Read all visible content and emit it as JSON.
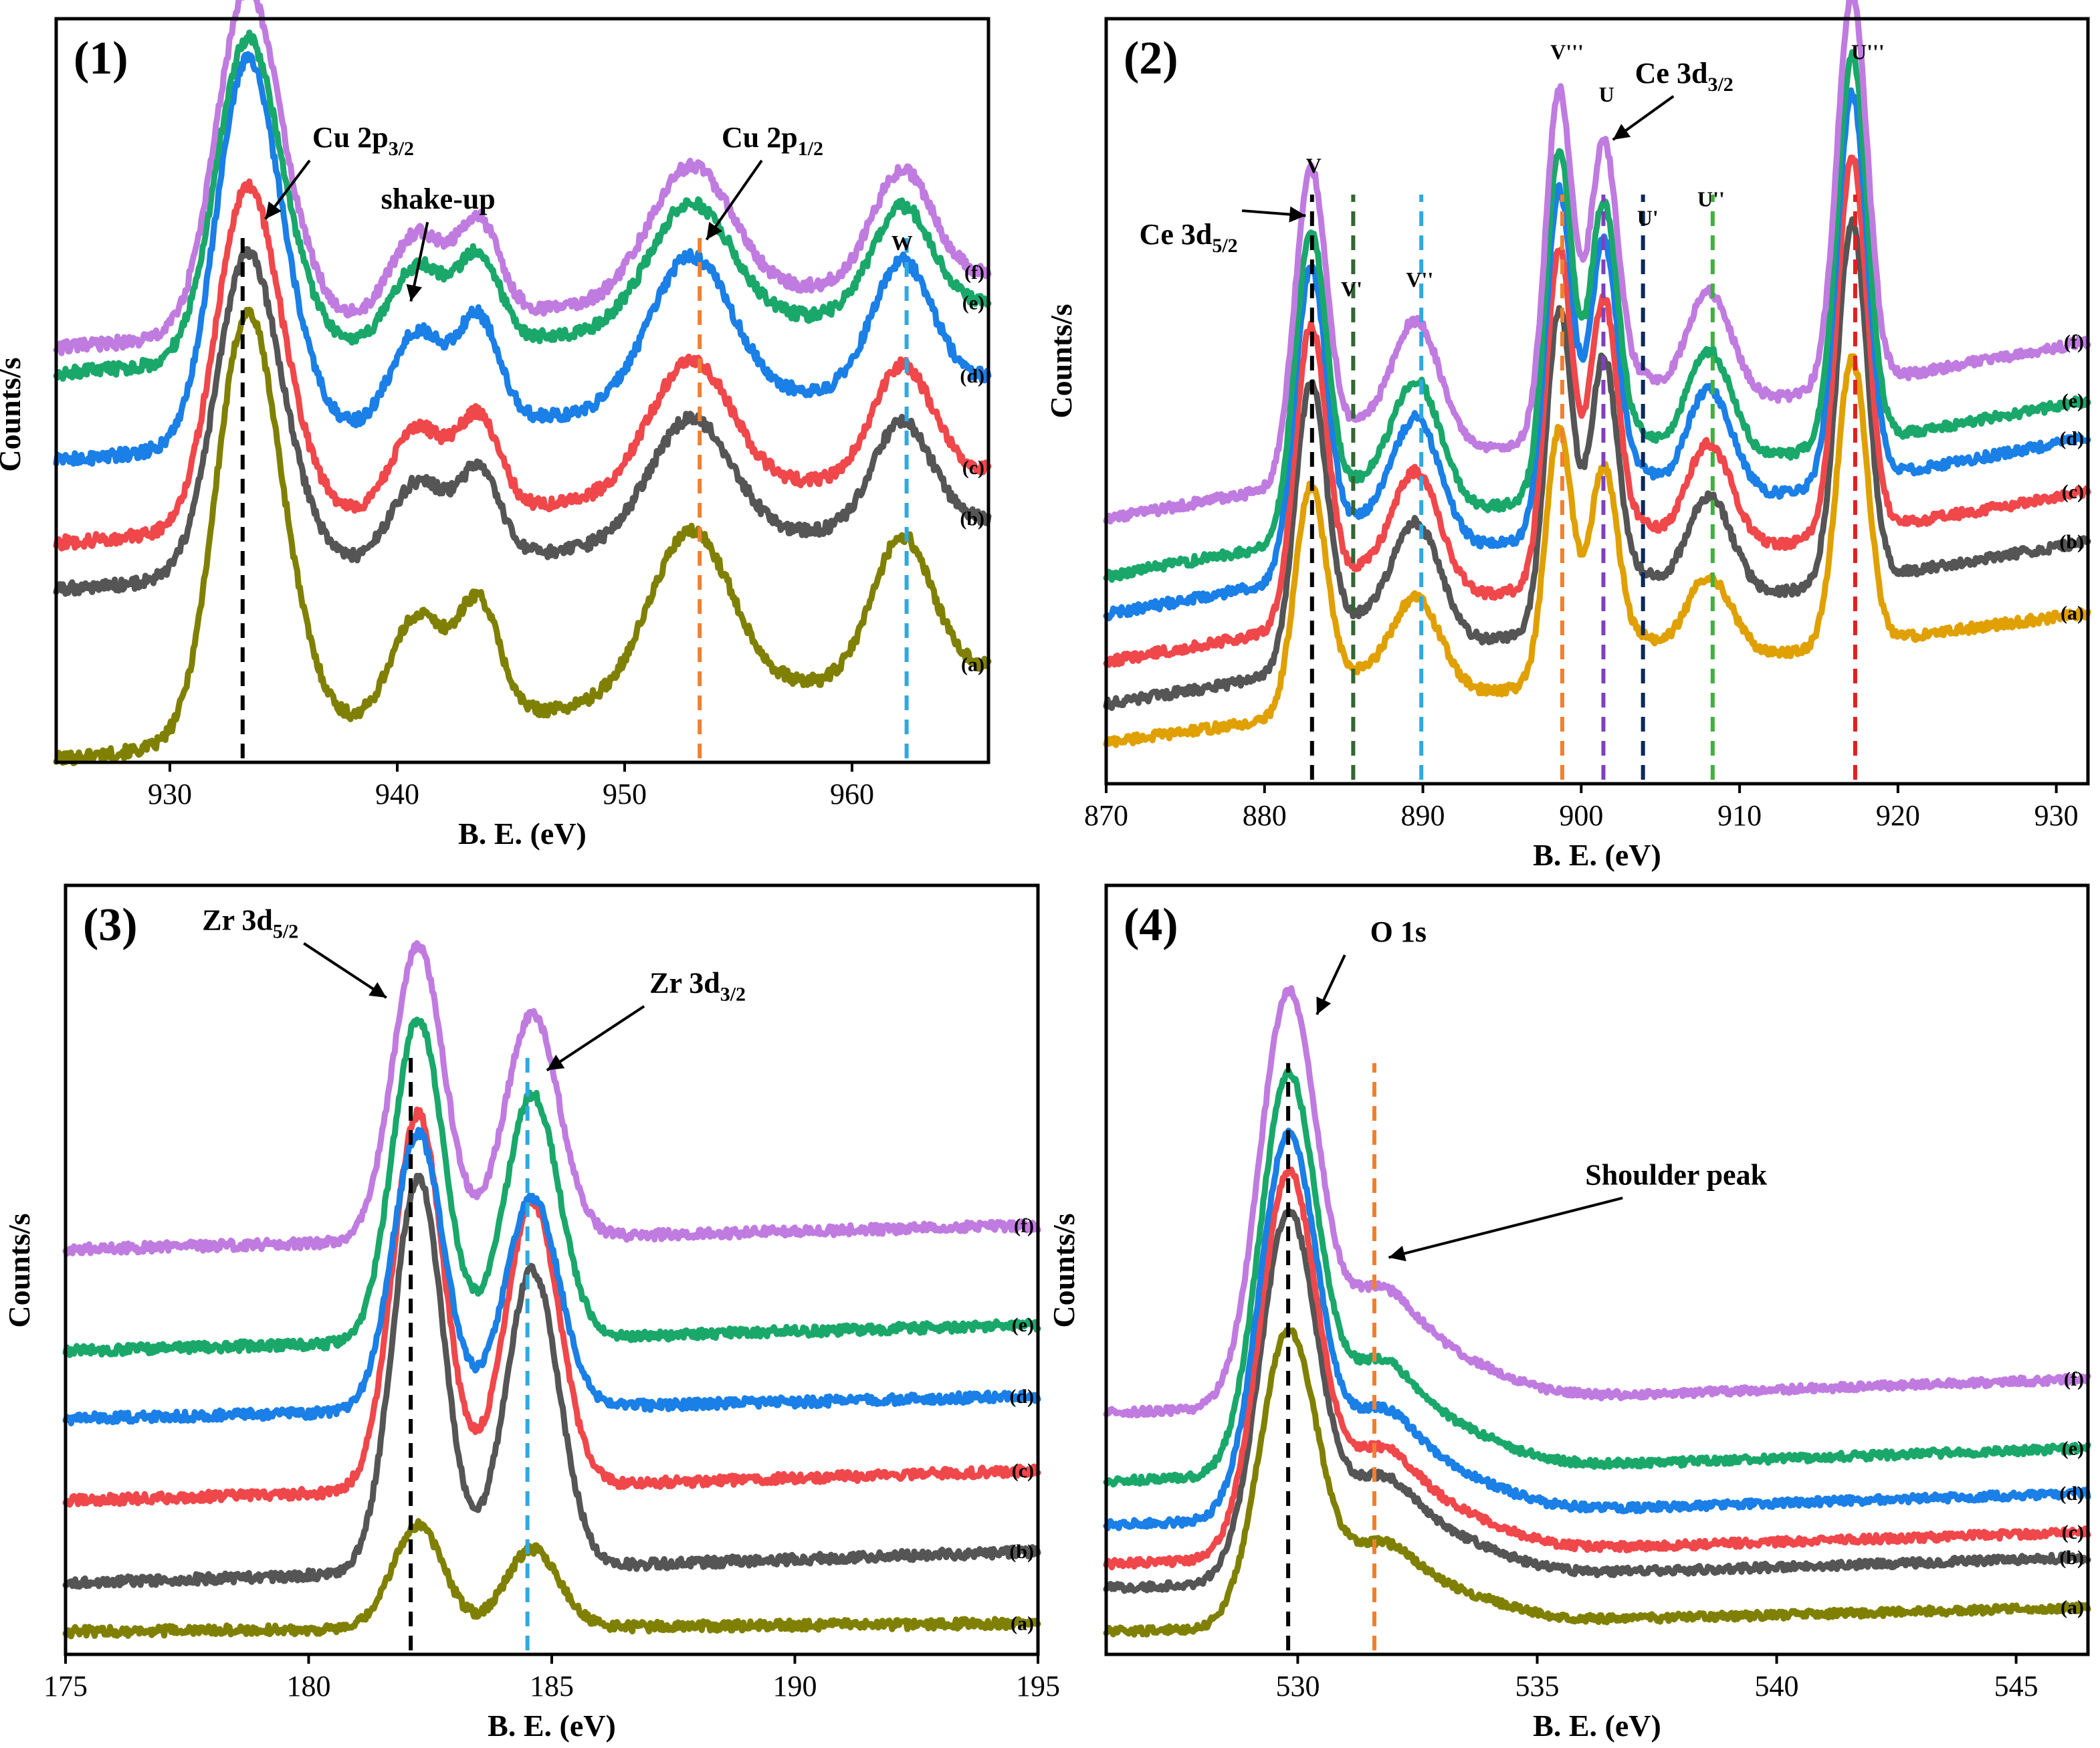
{
  "colors": {
    "a": "#808000",
    "b": "#555555",
    "c": "#f0474b",
    "d": "#1a7fe6",
    "e": "#1aa86a",
    "f": "#c07be0",
    "black": "#000000",
    "orange": "#f08030",
    "skyblue": "#30a8e0",
    "darkgreen": "#336633",
    "purple": "#8040c0",
    "navy": "#0a2a5a",
    "green": "#40b040",
    "red": "#e02020",
    "gold": "#e0a000"
  },
  "chart_data": [
    {
      "type": "line",
      "panel_label": "(1)",
      "xlabel": "B. E. (eV)",
      "ylabel": "Counts/s",
      "xlim": [
        925,
        966
      ],
      "xticks": [
        930,
        940,
        950,
        960
      ],
      "series_names": [
        "(a)",
        "(b)",
        "(c)",
        "(d)",
        "(e)",
        "(f)"
      ],
      "series_colors": [
        "a",
        "b",
        "c",
        "d",
        "e",
        "f"
      ],
      "series_y_offsets": [
        0,
        1.65,
        2.1,
        2.9,
        3.75,
        4.0
      ],
      "series_scale": [
        1.0,
        0.75,
        0.8,
        0.9,
        0.75,
        0.8
      ],
      "peaks": [
        {
          "c": 933.2,
          "w": 1.3,
          "h": 3.0
        },
        {
          "c": 934.3,
          "w": 1.6,
          "h": 1.4
        },
        {
          "c": 940.9,
          "w": 1.2,
          "h": 1.05
        },
        {
          "c": 943.6,
          "w": 0.9,
          "h": 1.1
        },
        {
          "c": 952.9,
          "w": 1.8,
          "h": 1.6
        },
        {
          "c": 962.2,
          "w": 1.3,
          "h": 1.35
        }
      ],
      "baseline": {
        "start": 0,
        "end": 0.9
      },
      "noise": 0.06,
      "reference_lines": [
        {
          "x": 933.2,
          "color": "black"
        },
        {
          "x": 953.3,
          "color": "orange"
        },
        {
          "x": 962.4,
          "color": "skyblue"
        }
      ],
      "annotations": [
        {
          "text": "Cu 2p",
          "sub": "3/2",
          "label_x": 938.5,
          "label_level": 5.95,
          "arrow_to": [
            934.2,
            5.25
          ]
        },
        {
          "text": "shake-up",
          "sub": "",
          "label_x": 941.8,
          "label_level": 5.35,
          "arrow_to": [
            940.6,
            4.45
          ]
        },
        {
          "text": "Cu 2p",
          "sub": "1/2",
          "label_x": 956.5,
          "label_level": 5.95,
          "arrow_to": [
            953.6,
            5.05
          ]
        }
      ],
      "peak_letters": [
        {
          "text": "W",
          "x": 962.2,
          "level": 4.95
        }
      ]
    },
    {
      "type": "line",
      "panel_label": "(2)",
      "xlabel": "B. E. (eV)",
      "ylabel": "Counts/s",
      "xlim": [
        870,
        932
      ],
      "xticks": [
        870,
        880,
        890,
        900,
        910,
        920,
        930
      ],
      "series_names": [
        "(a)",
        "(b)",
        "(c)",
        "(d)",
        "(e)",
        "(f)"
      ],
      "series_colors": [
        "gold",
        "b",
        "c",
        "d",
        "e",
        "f"
      ],
      "series_y_offsets": [
        0,
        0.4,
        0.85,
        1.35,
        1.75,
        2.35
      ],
      "series_scale": [
        0.7,
        0.88,
        0.92,
        0.95,
        0.95,
        0.96
      ],
      "peaks": [
        {
          "c": 882.9,
          "w": 1.0,
          "h": 3.35
        },
        {
          "c": 885.6,
          "w": 1.5,
          "h": 0.45
        },
        {
          "c": 889.5,
          "w": 1.6,
          "h": 1.55
        },
        {
          "c": 898.6,
          "w": 0.85,
          "h": 3.8
        },
        {
          "c": 901.4,
          "w": 0.9,
          "h": 3.1
        },
        {
          "c": 903.8,
          "w": 1.2,
          "h": 0.45
        },
        {
          "c": 908.0,
          "w": 1.5,
          "h": 1.3
        },
        {
          "c": 917.1,
          "w": 0.95,
          "h": 4.3
        }
      ],
      "baseline": {
        "start": 0,
        "end": 1.95
      },
      "noise": 0.05,
      "reference_lines": [
        {
          "x": 883.0,
          "color": "black"
        },
        {
          "x": 885.6,
          "color": "darkgreen"
        },
        {
          "x": 889.9,
          "color": "skyblue"
        },
        {
          "x": 898.8,
          "color": "orange"
        },
        {
          "x": 901.4,
          "color": "purple"
        },
        {
          "x": 903.9,
          "color": "navy"
        },
        {
          "x": 908.3,
          "color": "green"
        },
        {
          "x": 917.3,
          "color": "red"
        }
      ],
      "annotations": [
        {
          "text": "Ce 3d",
          "sub": "5/2",
          "label_x": 875.2,
          "label_level": 5.25,
          "arrow_to": [
            882.6,
            5.55
          ]
        },
        {
          "text": "Ce 3d",
          "sub": "3/2",
          "label_x": 906.5,
          "label_level": 6.95,
          "arrow_to": [
            902.0,
            6.35
          ]
        }
      ],
      "peak_letters": [
        {
          "text": "V",
          "x": 883.1,
          "level": 6.0
        },
        {
          "text": "V'",
          "x": 885.5,
          "level": 4.7
        },
        {
          "text": "V''",
          "x": 889.8,
          "level": 4.8
        },
        {
          "text": "V'''",
          "x": 899.1,
          "level": 7.2
        },
        {
          "text": "U",
          "x": 901.6,
          "level": 6.75
        },
        {
          "text": "U'",
          "x": 904.2,
          "level": 5.45
        },
        {
          "text": "U''",
          "x": 908.2,
          "level": 5.65
        },
        {
          "text": "U'''",
          "x": 918.1,
          "level": 7.2
        }
      ]
    },
    {
      "type": "line",
      "panel_label": "(3)",
      "xlabel": "B. E. (eV)",
      "ylabel": "Counts/s",
      "xlim": [
        175,
        195
      ],
      "xticks": [
        175,
        180,
        185,
        190,
        195
      ],
      "series_names": [
        "(a)",
        "(b)",
        "(c)",
        "(d)",
        "(e)",
        "(f)"
      ],
      "series_colors": [
        "a",
        "b",
        "c",
        "d",
        "e",
        "f"
      ],
      "series_y_offsets": [
        0,
        0.5,
        1.35,
        2.2,
        2.9,
        3.95
      ],
      "series_scale": [
        0.58,
        2.2,
        2.1,
        1.55,
        1.8,
        1.65
      ],
      "peaks": [
        {
          "c": 182.25,
          "w": 0.52,
          "h": 1.85
        },
        {
          "c": 184.6,
          "w": 0.55,
          "h": 1.4
        }
      ],
      "baseline": {
        "start": 0,
        "end": 0.15
      },
      "noise": 0.05,
      "reference_lines": [
        {
          "x": 182.1,
          "color": "black"
        },
        {
          "x": 184.5,
          "color": "skyblue"
        }
      ],
      "annotations": [
        {
          "text": "Zr 3d",
          "sub": "5/2",
          "label_x": 178.8,
          "label_level": 7.25,
          "arrow_to": [
            181.6,
            6.55
          ]
        },
        {
          "text": "Zr 3d",
          "sub": "3/2",
          "label_x": 188.0,
          "label_level": 6.6,
          "arrow_to": [
            184.9,
            5.8
          ]
        }
      ],
      "peak_letters": []
    },
    {
      "type": "line",
      "panel_label": "(4)",
      "xlabel": "B. E. (eV)",
      "ylabel": "Counts/s",
      "xlim": [
        526,
        546.5
      ],
      "xticks": [
        530,
        535,
        540,
        545
      ],
      "series_names": [
        "(a)",
        "(b)",
        "(c)",
        "(d)",
        "(e)",
        "(f)"
      ],
      "series_colors": [
        "a",
        "b",
        "c",
        "d",
        "e",
        "f"
      ],
      "series_y_offsets": [
        0,
        0.45,
        0.7,
        1.1,
        1.55,
        2.25
      ],
      "series_scale": [
        1.0,
        1.25,
        1.3,
        1.3,
        1.35,
        1.4
      ],
      "peaks": [
        {
          "c": 529.8,
          "w": 0.6,
          "h": 3.0
        },
        {
          "c": 531.6,
          "w": 0.75,
          "h": 0.6
        },
        {
          "c": 532.8,
          "w": 1.3,
          "h": 0.35
        }
      ],
      "baseline": {
        "start": 0,
        "end": 0.25
      },
      "noise": 0.04,
      "reference_lines": [
        {
          "x": 529.8,
          "color": "black"
        },
        {
          "x": 531.6,
          "color": "orange"
        }
      ],
      "annotations": [
        {
          "text": "O 1s",
          "sub": "",
          "label_x": 532.1,
          "label_level": 7.1,
          "arrow_to": [
            530.4,
            6.35
          ]
        },
        {
          "text": "Shoulder peak",
          "sub": "",
          "label_x": 537.9,
          "label_level": 4.6,
          "arrow_to": [
            531.9,
            3.85
          ]
        }
      ],
      "peak_letters": []
    }
  ]
}
